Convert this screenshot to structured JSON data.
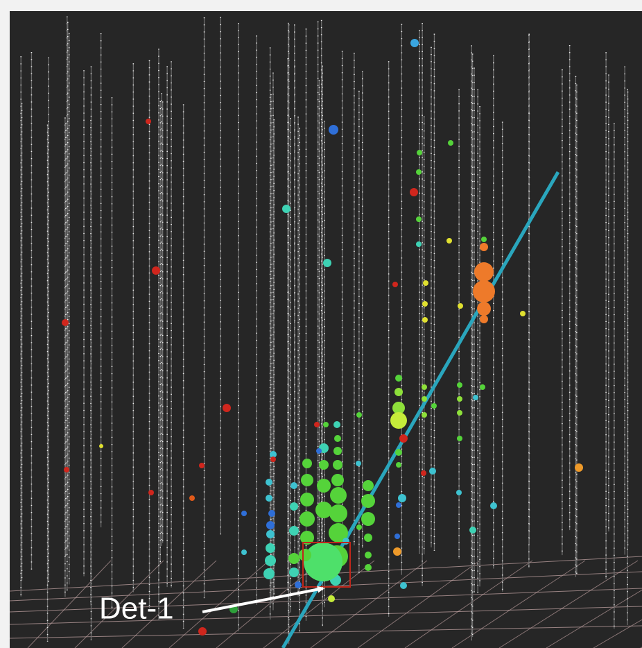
{
  "annotation": {
    "label": "Det-1"
  }
}
